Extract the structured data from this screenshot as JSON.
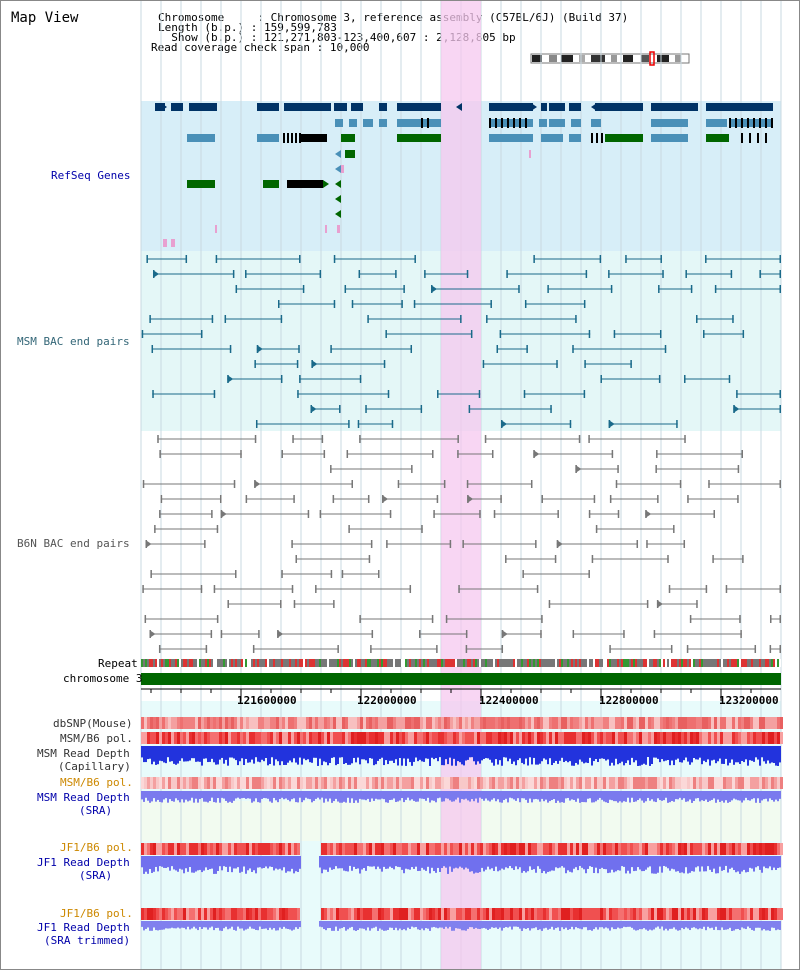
{
  "title": "Map View",
  "info": {
    "chromosome_key": "Chromosome     ",
    "chromosome_val": ": Chromosome 3, reference assembly (C57BL/6J) (Build 37)",
    "length_key": "Length (b.p.) ",
    "length_val": ": 159,599,783",
    "show_key": "  Show (b.p.) ",
    "show_val": ": 121,271,803-123,400,607 : 2,128,805 bp",
    "coverage_key": "Read coverage check span ",
    "coverage_val": ": 10,000"
  },
  "tracks": {
    "refseq": "RefSeq Genes",
    "msm_bac": "MSM BAC end pairs",
    "b6n_bac": "B6N BAC end pairs",
    "repeat": "Repeat",
    "chromosome": "chromosome 3",
    "dbsnp": "dbSNP(Mouse)",
    "msm_b6_pol_1": "MSM/B6 pol.",
    "msm_read_depth_cap_1": "MSM Read Depth",
    "msm_read_depth_cap_2": "(Capillary)",
    "msm_b6_pol_2": "MSM/B6 pol.",
    "msm_read_depth_sra_1": "MSM Read Depth",
    "msm_read_depth_sra_2": "(SRA)",
    "jf1_b6_pol_1": "JF1/B6 pol.",
    "jf1_read_depth_sra_1": "JF1 Read Depth",
    "jf1_read_depth_sra_2": "(SRA)",
    "jf1_b6_pol_2": "JF1/B6 pol.",
    "jf1_read_depth_trim_1": "JF1 Read Depth",
    "jf1_read_depth_trim_2": "(SRA trimmed)"
  },
  "axis": {
    "ticks": [
      "121600000",
      "122000000",
      "122400000",
      "122800000",
      "123200000"
    ]
  },
  "colors": {
    "refseq_bg": "#d7eef8",
    "msm_bg": "#e4f7f7",
    "b6n_bg": "#ffffff",
    "highlight": "#f5d0f0",
    "gene_dark": "#003366",
    "gene_mid": "#4a90b8",
    "gene_green": "#006600",
    "msm_pair": "#1a6a8a",
    "b6n_pair": "#666666",
    "chromosome_bar": "#006600"
  }
}
